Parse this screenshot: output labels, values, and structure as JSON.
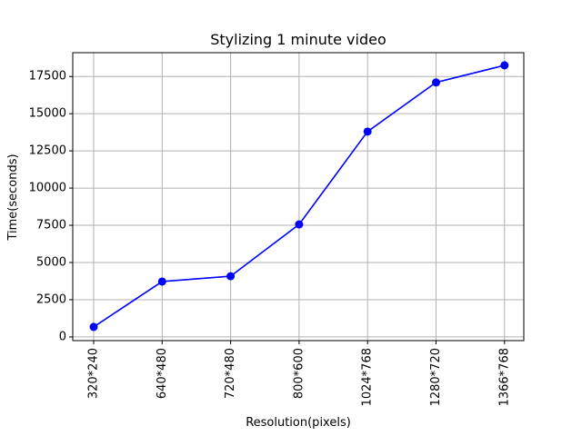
{
  "chart_data": {
    "type": "line",
    "title": "Stylizing 1 minute video",
    "xlabel": "Resolution(pixels)",
    "ylabel": "Time(seconds)",
    "categories": [
      "320*240",
      "640*480",
      "720*480",
      "800*600",
      "1024*768",
      "1280*720",
      "1366*768"
    ],
    "series": [
      {
        "values": [
          670,
          3720,
          4080,
          7560,
          13800,
          17100,
          18250
        ]
      }
    ],
    "yticks": [
      0,
      2500,
      5000,
      7500,
      10000,
      12500,
      15000,
      17500
    ],
    "ylim": [
      -250,
      19100
    ],
    "grid": true,
    "line_color": "#0000ff",
    "marker": "circle",
    "x_tick_rotation": 90
  }
}
